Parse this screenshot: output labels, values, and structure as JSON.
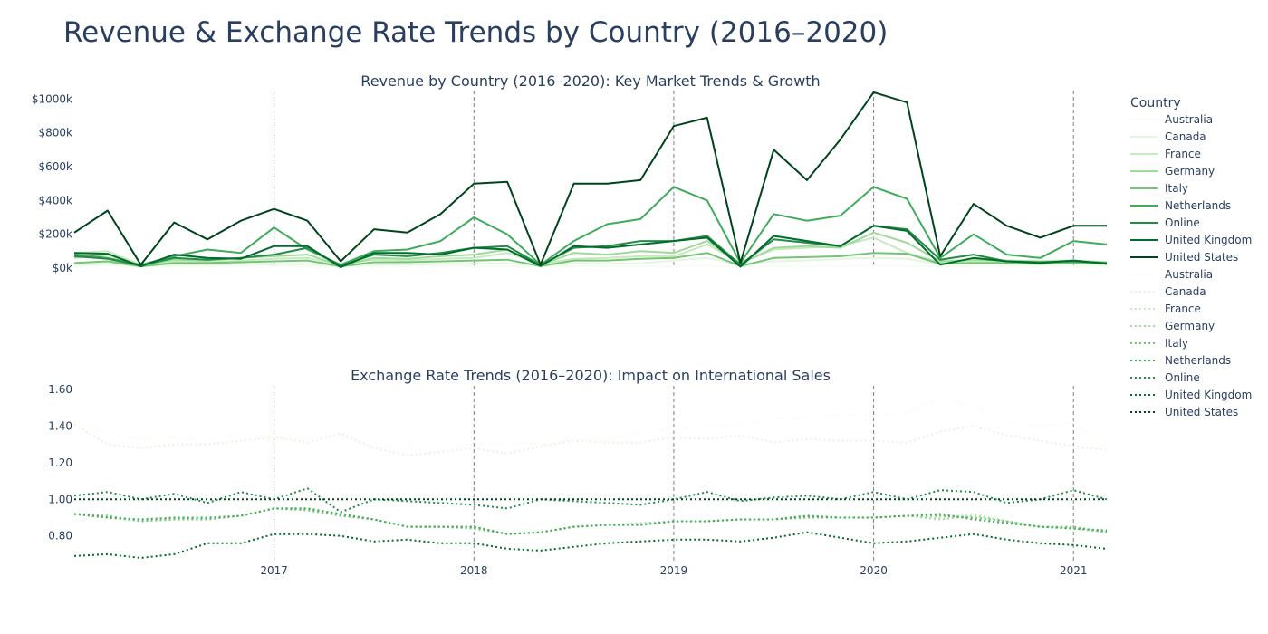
{
  "title": "Revenue & Exchange Rate Trends by Country (2016–2020)",
  "chart_data": [
    {
      "type": "line",
      "title": "Revenue by Country (2016–2020): Key Market Trends & Growth",
      "xlim": [
        "2016-01",
        "2021-03"
      ],
      "ylim": [
        0,
        1050
      ],
      "y_unit": "$k",
      "y_ticks": [
        "$0k",
        "$200k",
        "$400k",
        "$600k",
        "$800k",
        "$1000k"
      ],
      "x_ticks": [
        "2017",
        "2018",
        "2019",
        "2020",
        "2021"
      ],
      "grid": false,
      "x_dates": [
        "2016-01",
        "2016-03",
        "2016-05",
        "2016-07",
        "2016-09",
        "2016-11",
        "2017-01",
        "2017-03",
        "2017-05",
        "2017-07",
        "2017-09",
        "2017-11",
        "2018-01",
        "2018-03",
        "2018-05",
        "2018-07",
        "2018-09",
        "2018-11",
        "2019-01",
        "2019-03",
        "2019-05",
        "2019-07",
        "2019-09",
        "2019-11",
        "2020-01",
        "2020-03",
        "2020-05",
        "2020-07",
        "2020-09",
        "2020-11",
        "2021-01",
        "2021-03"
      ],
      "series": [
        {
          "name": "Australia",
          "color": "#f7fcf5",
          "values": [
            10,
            15,
            8,
            10,
            9,
            10,
            12,
            10,
            8,
            9,
            10,
            9,
            10,
            12,
            8,
            10,
            11,
            10,
            12,
            14,
            10,
            12,
            13,
            12,
            14,
            12,
            9,
            10,
            11,
            10,
            12,
            11
          ]
        },
        {
          "name": "Canada",
          "color": "#e5f5e0",
          "values": [
            20,
            25,
            15,
            22,
            20,
            24,
            22,
            24,
            14,
            22,
            20,
            24,
            25,
            28,
            16,
            26,
            25,
            28,
            45,
            60,
            20,
            40,
            45,
            55,
            60,
            55,
            22,
            28,
            25,
            22,
            30,
            20
          ]
        },
        {
          "name": "France",
          "color": "#c7e9c0",
          "values": [
            90,
            100,
            20,
            40,
            35,
            45,
            55,
            60,
            20,
            50,
            45,
            55,
            60,
            90,
            25,
            55,
            60,
            70,
            70,
            140,
            30,
            110,
            120,
            130,
            180,
            90,
            35,
            40,
            35,
            30,
            40,
            30
          ]
        },
        {
          "name": "Germany",
          "color": "#a1d99b",
          "values": [
            60,
            80,
            15,
            50,
            45,
            60,
            70,
            80,
            15,
            60,
            55,
            70,
            80,
            110,
            20,
            90,
            80,
            100,
            90,
            160,
            25,
            120,
            130,
            120,
            210,
            150,
            40,
            50,
            45,
            40,
            45,
            35
          ]
        },
        {
          "name": "Italy",
          "color": "#74c476",
          "values": [
            30,
            40,
            10,
            30,
            30,
            35,
            40,
            45,
            10,
            35,
            35,
            40,
            45,
            50,
            12,
            45,
            45,
            55,
            60,
            90,
            12,
            60,
            65,
            70,
            90,
            85,
            25,
            30,
            30,
            25,
            30,
            25
          ]
        },
        {
          "name": "Netherlands",
          "color": "#41ab5d",
          "values": [
            80,
            60,
            20,
            70,
            110,
            90,
            240,
            110,
            20,
            100,
            110,
            160,
            300,
            200,
            20,
            160,
            260,
            290,
            480,
            400,
            30,
            320,
            280,
            310,
            480,
            410,
            60,
            200,
            80,
            60,
            160,
            140
          ]
        },
        {
          "name": "Online",
          "color": "#238b45",
          "values": [
            70,
            55,
            15,
            60,
            50,
            60,
            80,
            120,
            15,
            80,
            70,
            90,
            120,
            130,
            18,
            120,
            130,
            160,
            160,
            190,
            20,
            170,
            150,
            130,
            250,
            230,
            50,
            80,
            40,
            35,
            40,
            30
          ]
        },
        {
          "name": "United Kingdom",
          "color": "#006d2c",
          "values": [
            90,
            85,
            10,
            80,
            60,
            55,
            130,
            130,
            5,
            90,
            90,
            80,
            120,
            110,
            12,
            130,
            120,
            140,
            160,
            180,
            8,
            190,
            160,
            130,
            250,
            220,
            20,
            60,
            40,
            30,
            45,
            25
          ]
        },
        {
          "name": "United States",
          "color": "#00441b",
          "values": [
            210,
            340,
            20,
            270,
            170,
            280,
            350,
            280,
            40,
            230,
            210,
            320,
            500,
            510,
            20,
            500,
            500,
            520,
            840,
            890,
            30,
            700,
            520,
            760,
            1040,
            980,
            70,
            380,
            250,
            180,
            250,
            250
          ]
        }
      ]
    },
    {
      "type": "line",
      "title": "Exchange Rate Trends (2016–2020): Impact on International Sales",
      "xlim": [
        "2016-01",
        "2021-03"
      ],
      "ylim": [
        0.66,
        1.62
      ],
      "y_ticks": [
        "0.80",
        "1.00",
        "1.20",
        "1.40",
        "1.60"
      ],
      "x_ticks": [
        "2017",
        "2018",
        "2019",
        "2020",
        "2021"
      ],
      "grid": false,
      "line_style": "dotted",
      "x_dates": [
        "2016-01",
        "2016-03",
        "2016-05",
        "2016-07",
        "2016-09",
        "2016-11",
        "2017-01",
        "2017-03",
        "2017-05",
        "2017-07",
        "2017-09",
        "2017-11",
        "2018-01",
        "2018-03",
        "2018-05",
        "2018-07",
        "2018-09",
        "2018-11",
        "2019-01",
        "2019-03",
        "2019-05",
        "2019-07",
        "2019-09",
        "2019-11",
        "2020-01",
        "2020-03",
        "2020-05",
        "2020-07",
        "2020-09",
        "2020-11",
        "2021-01",
        "2021-03"
      ],
      "series": [
        {
          "name": "Australia",
          "color": "#f7fcf5",
          "values": [
            1.43,
            1.36,
            1.33,
            1.34,
            1.32,
            1.36,
            1.34,
            1.34,
            1.35,
            1.28,
            1.3,
            1.29,
            1.3,
            1.31,
            1.3,
            1.33,
            1.32,
            1.37,
            1.38,
            1.4,
            1.41,
            1.44,
            1.45,
            1.46,
            1.46,
            1.47,
            1.56,
            1.51,
            1.42,
            1.4,
            1.42,
            1.28
          ]
        },
        {
          "name": "Canada",
          "color": "#e5f5e0",
          "values": [
            1.41,
            1.3,
            1.28,
            1.3,
            1.3,
            1.32,
            1.34,
            1.31,
            1.36,
            1.28,
            1.24,
            1.26,
            1.28,
            1.25,
            1.29,
            1.32,
            1.31,
            1.31,
            1.34,
            1.33,
            1.35,
            1.31,
            1.33,
            1.32,
            1.32,
            1.31,
            1.37,
            1.4,
            1.35,
            1.32,
            1.29,
            1.27
          ]
        },
        {
          "name": "France",
          "color": "#c7e9c0",
          "values": [
            0.92,
            0.9,
            0.89,
            0.9,
            0.89,
            0.91,
            0.95,
            0.95,
            0.92,
            0.89,
            0.85,
            0.85,
            0.85,
            0.81,
            0.82,
            0.85,
            0.86,
            0.86,
            0.88,
            0.88,
            0.89,
            0.89,
            0.9,
            0.9,
            0.9,
            0.91,
            0.9,
            0.92,
            0.88,
            0.85,
            0.84,
            0.82
          ]
        },
        {
          "name": "Germany",
          "color": "#a1d99b",
          "values": [
            0.92,
            0.9,
            0.88,
            0.9,
            0.89,
            0.91,
            0.95,
            0.95,
            0.91,
            0.89,
            0.85,
            0.85,
            0.85,
            0.81,
            0.82,
            0.85,
            0.86,
            0.87,
            0.88,
            0.88,
            0.89,
            0.89,
            0.91,
            0.9,
            0.9,
            0.91,
            0.89,
            0.91,
            0.88,
            0.85,
            0.84,
            0.82
          ]
        },
        {
          "name": "Italy",
          "color": "#74c476",
          "values": [
            0.92,
            0.91,
            0.88,
            0.89,
            0.89,
            0.91,
            0.95,
            0.94,
            0.91,
            0.89,
            0.85,
            0.85,
            0.84,
            0.81,
            0.82,
            0.85,
            0.86,
            0.86,
            0.88,
            0.88,
            0.89,
            0.89,
            0.9,
            0.9,
            0.9,
            0.91,
            0.91,
            0.9,
            0.88,
            0.85,
            0.85,
            0.82
          ]
        },
        {
          "name": "Netherlands",
          "color": "#41ab5d",
          "values": [
            0.92,
            0.9,
            0.89,
            0.9,
            0.9,
            0.91,
            0.95,
            0.95,
            0.92,
            0.89,
            0.85,
            0.85,
            0.85,
            0.81,
            0.82,
            0.85,
            0.86,
            0.86,
            0.88,
            0.88,
            0.89,
            0.89,
            0.91,
            0.9,
            0.9,
            0.91,
            0.92,
            0.89,
            0.87,
            0.85,
            0.84,
            0.83
          ]
        },
        {
          "name": "Online",
          "color": "#238b45",
          "values": [
            1.02,
            1.04,
            1.0,
            1.03,
            0.98,
            1.04,
            1.0,
            1.06,
            0.93,
            1.0,
            0.99,
            0.98,
            0.97,
            0.95,
            1.0,
            0.99,
            0.98,
            0.97,
            1.0,
            1.04,
            0.99,
            1.01,
            1.02,
            1.0,
            1.04,
            1.0,
            1.05,
            1.04,
            0.98,
            1.0,
            1.05,
            1.0
          ]
        },
        {
          "name": "United Kingdom",
          "color": "#006d2c",
          "values": [
            0.69,
            0.7,
            0.68,
            0.7,
            0.76,
            0.76,
            0.81,
            0.81,
            0.8,
            0.77,
            0.78,
            0.76,
            0.76,
            0.73,
            0.72,
            0.74,
            0.76,
            0.77,
            0.78,
            0.78,
            0.77,
            0.79,
            0.82,
            0.79,
            0.76,
            0.77,
            0.79,
            0.81,
            0.78,
            0.76,
            0.75,
            0.73
          ]
        },
        {
          "name": "United States",
          "color": "#00441b",
          "values": [
            1.0,
            1.0,
            1.0,
            1.0,
            1.0,
            1.0,
            1.0,
            1.0,
            1.0,
            1.0,
            1.0,
            1.0,
            1.0,
            1.0,
            1.0,
            1.0,
            1.0,
            1.0,
            1.0,
            1.0,
            1.0,
            1.0,
            1.0,
            1.0,
            1.0,
            1.0,
            1.0,
            1.0,
            1.0,
            1.0,
            1.0,
            1.0
          ]
        }
      ]
    }
  ],
  "legend": {
    "title": "Country",
    "placement": "right",
    "items": [
      {
        "label": "Australia",
        "color": "#f7fcf5",
        "style": "solid"
      },
      {
        "label": "Canada",
        "color": "#e5f5e0",
        "style": "solid"
      },
      {
        "label": "France",
        "color": "#c7e9c0",
        "style": "solid"
      },
      {
        "label": "Germany",
        "color": "#a1d99b",
        "style": "solid"
      },
      {
        "label": "Italy",
        "color": "#74c476",
        "style": "solid"
      },
      {
        "label": "Netherlands",
        "color": "#41ab5d",
        "style": "solid"
      },
      {
        "label": "Online",
        "color": "#238b45",
        "style": "solid"
      },
      {
        "label": "United Kingdom",
        "color": "#006d2c",
        "style": "solid"
      },
      {
        "label": "United States",
        "color": "#00441b",
        "style": "solid"
      },
      {
        "label": "Australia",
        "color": "#f7fcf5",
        "style": "dotted"
      },
      {
        "label": "Canada",
        "color": "#e5f5e0",
        "style": "dotted"
      },
      {
        "label": "France",
        "color": "#c7e9c0",
        "style": "dotted"
      },
      {
        "label": "Germany",
        "color": "#a1d99b",
        "style": "dotted"
      },
      {
        "label": "Italy",
        "color": "#74c476",
        "style": "dotted"
      },
      {
        "label": "Netherlands",
        "color": "#41ab5d",
        "style": "dotted"
      },
      {
        "label": "Online",
        "color": "#238b45",
        "style": "dotted"
      },
      {
        "label": "United Kingdom",
        "color": "#006d2c",
        "style": "dotted"
      },
      {
        "label": "United States",
        "color": "#00441b",
        "style": "dotted"
      }
    ]
  }
}
